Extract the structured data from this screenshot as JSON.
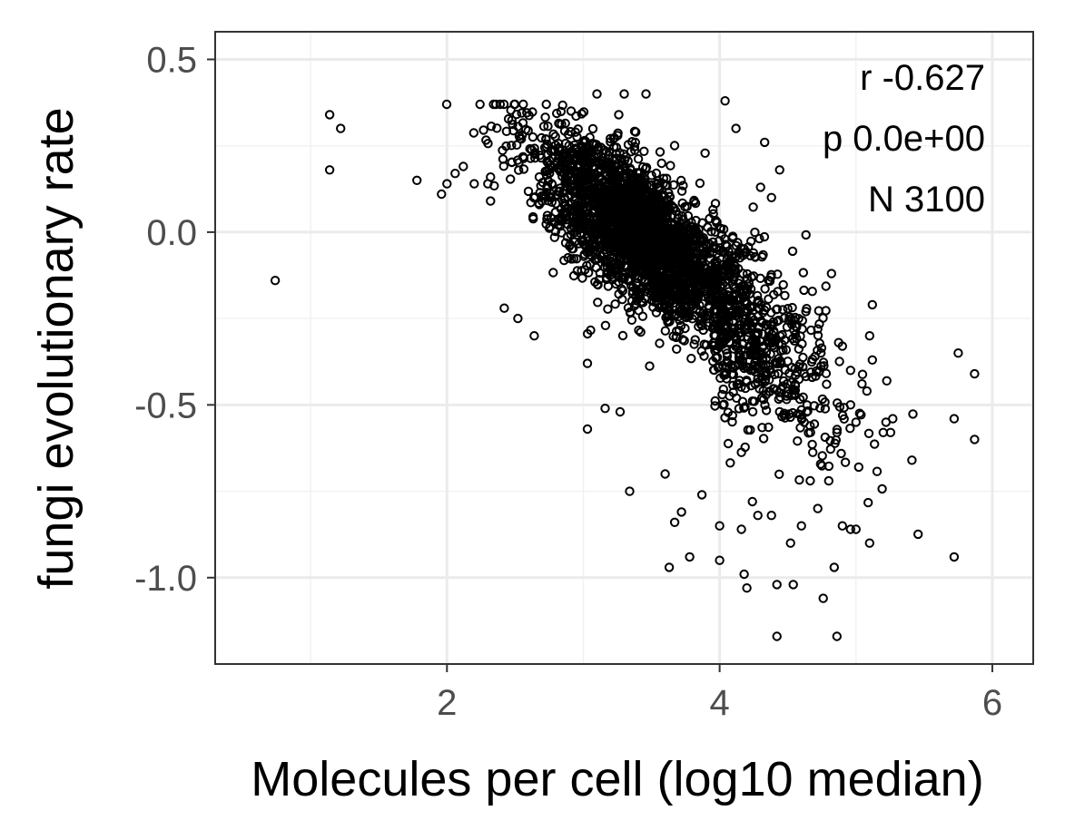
{
  "chart_data": {
    "type": "scatter",
    "title": "",
    "xlabel": "Molecules per cell (log10 median)",
    "ylabel": "fungi evolutionary rate",
    "xlim": [
      0.3,
      6.3
    ],
    "ylim": [
      -1.25,
      0.58
    ],
    "x_ticks": [
      2,
      4,
      6
    ],
    "x_tick_labels": [
      "2",
      "4",
      "6"
    ],
    "x_minor_ticks": [
      1,
      3,
      5
    ],
    "y_ticks": [
      0.5,
      0.0,
      -0.5,
      -1.0
    ],
    "y_tick_labels": [
      "0.5",
      "0.0",
      "-0.5",
      "-1.0"
    ],
    "y_minor_ticks": [
      0.25,
      -0.25,
      -0.75
    ],
    "grid": true,
    "marker": "open-circle",
    "marker_color": "#000000",
    "annotations": [
      {
        "id": "r",
        "text": "r -0.627"
      },
      {
        "id": "p",
        "text": "p 0.0e+00"
      },
      {
        "id": "n",
        "text": "N 3100"
      }
    ],
    "n_points": 3100,
    "points": [
      [
        0.74,
        -0.14
      ],
      [
        1.14,
        0.34
      ],
      [
        1.14,
        0.18
      ],
      [
        1.22,
        0.3
      ],
      [
        1.78,
        0.15
      ],
      [
        1.96,
        0.11
      ],
      [
        2.0,
        0.14
      ],
      [
        2.06,
        0.17
      ],
      [
        2.12,
        0.19
      ],
      [
        2.2,
        0.14
      ],
      [
        2.3,
        0.14
      ],
      [
        2.32,
        0.09
      ],
      [
        2.42,
        -0.22
      ],
      [
        2.52,
        -0.25
      ],
      [
        2.64,
        -0.3
      ],
      [
        3.03,
        -0.38
      ],
      [
        3.03,
        -0.57
      ],
      [
        3.16,
        -0.51
      ],
      [
        3.27,
        -0.52
      ],
      [
        3.34,
        -0.75
      ],
      [
        3.46,
        0.4
      ],
      [
        3.3,
        0.4
      ],
      [
        3.1,
        0.4
      ],
      [
        3.26,
        0.34
      ],
      [
        3.6,
        -0.7
      ],
      [
        3.63,
        -0.97
      ],
      [
        3.67,
        -0.84
      ],
      [
        3.72,
        -0.81
      ],
      [
        3.78,
        -0.94
      ],
      [
        3.87,
        -0.76
      ],
      [
        4.04,
        0.38
      ],
      [
        4.12,
        0.3
      ],
      [
        4.33,
        0.26
      ],
      [
        4.44,
        0.18
      ],
      [
        4.3,
        0.13
      ],
      [
        4.38,
        0.1
      ],
      [
        4.0,
        -0.85
      ],
      [
        4.0,
        -0.95
      ],
      [
        4.16,
        -0.86
      ],
      [
        4.18,
        -0.99
      ],
      [
        4.2,
        -1.03
      ],
      [
        4.24,
        -0.78
      ],
      [
        4.28,
        -0.82
      ],
      [
        4.38,
        -0.82
      ],
      [
        4.42,
        -1.02
      ],
      [
        4.42,
        -1.17
      ],
      [
        4.54,
        -1.02
      ],
      [
        4.76,
        -1.06
      ],
      [
        4.84,
        -0.97
      ],
      [
        4.86,
        -1.17
      ],
      [
        4.52,
        -0.9
      ],
      [
        4.6,
        -0.85
      ],
      [
        4.72,
        -0.8
      ],
      [
        4.8,
        -0.72
      ],
      [
        4.9,
        -0.85
      ],
      [
        4.96,
        -0.86
      ],
      [
        5.0,
        -0.86
      ],
      [
        5.1,
        -0.9
      ],
      [
        5.02,
        -0.68
      ],
      [
        4.96,
        -0.5
      ],
      [
        5.0,
        -0.55
      ],
      [
        5.08,
        -0.46
      ],
      [
        5.12,
        -0.37
      ],
      [
        5.1,
        -0.3
      ],
      [
        5.12,
        -0.21
      ],
      [
        5.2,
        -0.58
      ],
      [
        5.22,
        -0.55
      ],
      [
        5.27,
        -0.54
      ],
      [
        5.41,
        -0.66
      ],
      [
        5.72,
        -0.94
      ],
      [
        5.72,
        -0.54
      ],
      [
        5.75,
        -0.35
      ],
      [
        5.87,
        -0.41
      ],
      [
        5.87,
        -0.6
      ],
      [
        4.7,
        -0.36
      ],
      [
        4.9,
        -0.33
      ],
      [
        4.82,
        -0.12
      ],
      [
        4.72,
        -0.28
      ],
      [
        4.96,
        -0.4
      ],
      [
        4.86,
        -0.58
      ]
    ],
    "cluster_seed": 20240611,
    "cluster_points": 3020,
    "cluster_center": [
      3.45,
      -0.02
    ],
    "cluster_slope": -0.28
  }
}
